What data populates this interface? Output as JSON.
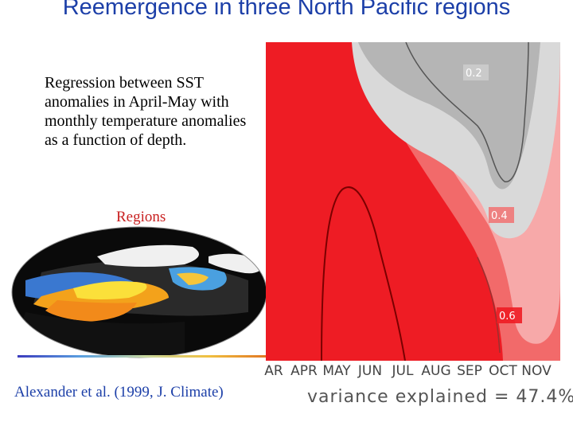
{
  "slide": {
    "title": "Reemergence in three North Pacific regions",
    "description": "Regression between SST anomalies in April-May with monthly temperature anomalies as a function of depth.",
    "regions_label": "Regions",
    "citation": "Alexander et al. (1999, J. Climate)"
  },
  "figure": {
    "months": [
      "AR",
      "APR",
      "MAY",
      "JUN",
      "JUL",
      "AUG",
      "SEP",
      "OCT",
      "NOV"
    ],
    "contour_labels": [
      "0.2",
      "0.4",
      "0.6"
    ],
    "variance_text": "variance explained = 47.4%"
  },
  "colors": {
    "title": "#1c3fa8",
    "regions": "#c82020",
    "red_high": "#ee1c24",
    "red_mid": "#f26a6a",
    "pink": "#f7a9a9",
    "gray_light": "#d9d9d9",
    "gray_dark": "#b5b5b5"
  }
}
